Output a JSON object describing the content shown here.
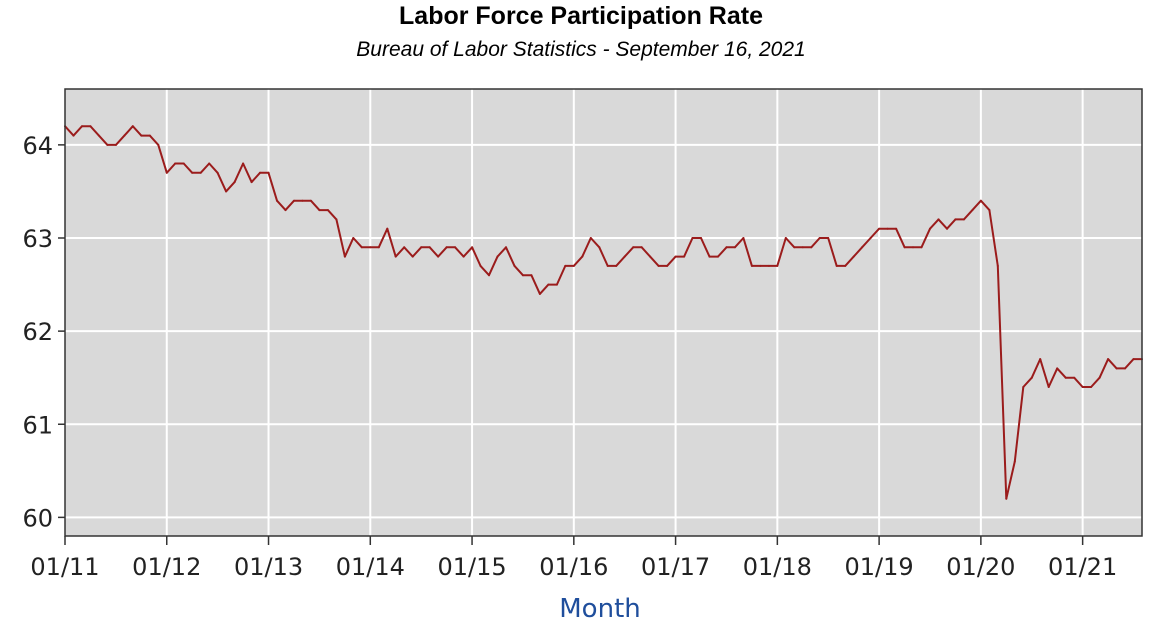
{
  "chart_data": {
    "type": "line",
    "title": "Labor Force Participation Rate",
    "subtitle": "Bureau of Labor Statistics - September 16, 2021",
    "xlabel": "Month",
    "ylabel": "",
    "grid": true,
    "ylim": [
      59.8,
      64.6
    ],
    "yticks": [
      "64",
      "63",
      "62",
      "61",
      "60"
    ],
    "xlim": [
      "2011-01",
      "2021-08"
    ],
    "xticks": [
      "01/11",
      "01/12",
      "01/13",
      "01/14",
      "01/15",
      "01/16",
      "01/17",
      "01/18",
      "01/19",
      "01/20",
      "01/21"
    ],
    "colors": {
      "line": "#9b1c1c",
      "plot_bg": "#d9d9d9",
      "grid": "#ffffff",
      "xlabel": "#1f4e9c"
    },
    "series": [
      {
        "name": "",
        "x": [
          "2011-01",
          "2011-02",
          "2011-03",
          "2011-04",
          "2011-05",
          "2011-06",
          "2011-07",
          "2011-08",
          "2011-09",
          "2011-10",
          "2011-11",
          "2011-12",
          "2012-01",
          "2012-02",
          "2012-03",
          "2012-04",
          "2012-05",
          "2012-06",
          "2012-07",
          "2012-08",
          "2012-09",
          "2012-10",
          "2012-11",
          "2012-12",
          "2013-01",
          "2013-02",
          "2013-03",
          "2013-04",
          "2013-05",
          "2013-06",
          "2013-07",
          "2013-08",
          "2013-09",
          "2013-10",
          "2013-11",
          "2013-12",
          "2014-01",
          "2014-02",
          "2014-03",
          "2014-04",
          "2014-05",
          "2014-06",
          "2014-07",
          "2014-08",
          "2014-09",
          "2014-10",
          "2014-11",
          "2014-12",
          "2015-01",
          "2015-02",
          "2015-03",
          "2015-04",
          "2015-05",
          "2015-06",
          "2015-07",
          "2015-08",
          "2015-09",
          "2015-10",
          "2015-11",
          "2015-12",
          "2016-01",
          "2016-02",
          "2016-03",
          "2016-04",
          "2016-05",
          "2016-06",
          "2016-07",
          "2016-08",
          "2016-09",
          "2016-10",
          "2016-11",
          "2016-12",
          "2017-01",
          "2017-02",
          "2017-03",
          "2017-04",
          "2017-05",
          "2017-06",
          "2017-07",
          "2017-08",
          "2017-09",
          "2017-10",
          "2017-11",
          "2017-12",
          "2018-01",
          "2018-02",
          "2018-03",
          "2018-04",
          "2018-05",
          "2018-06",
          "2018-07",
          "2018-08",
          "2018-09",
          "2018-10",
          "2018-11",
          "2018-12",
          "2019-01",
          "2019-02",
          "2019-03",
          "2019-04",
          "2019-05",
          "2019-06",
          "2019-07",
          "2019-08",
          "2019-09",
          "2019-10",
          "2019-11",
          "2019-12",
          "2020-01",
          "2020-02",
          "2020-03",
          "2020-04",
          "2020-05",
          "2020-06",
          "2020-07",
          "2020-08",
          "2020-09",
          "2020-10",
          "2020-11",
          "2020-12",
          "2021-01",
          "2021-02",
          "2021-03",
          "2021-04",
          "2021-05",
          "2021-06",
          "2021-07",
          "2021-08"
        ],
        "values": [
          64.2,
          64.1,
          64.2,
          64.2,
          64.1,
          64.0,
          64.0,
          64.1,
          64.2,
          64.1,
          64.1,
          64.0,
          63.7,
          63.8,
          63.8,
          63.7,
          63.7,
          63.8,
          63.7,
          63.5,
          63.6,
          63.8,
          63.6,
          63.7,
          63.7,
          63.4,
          63.3,
          63.4,
          63.4,
          63.4,
          63.3,
          63.3,
          63.2,
          62.8,
          63.0,
          62.9,
          62.9,
          62.9,
          63.1,
          62.8,
          62.9,
          62.8,
          62.9,
          62.9,
          62.8,
          62.9,
          62.9,
          62.8,
          62.9,
          62.7,
          62.6,
          62.8,
          62.9,
          62.7,
          62.6,
          62.6,
          62.4,
          62.5,
          62.5,
          62.7,
          62.7,
          62.8,
          63.0,
          62.9,
          62.7,
          62.7,
          62.8,
          62.9,
          62.9,
          62.8,
          62.7,
          62.7,
          62.8,
          62.8,
          63.0,
          63.0,
          62.8,
          62.8,
          62.9,
          62.9,
          63.0,
          62.7,
          62.7,
          62.7,
          62.7,
          63.0,
          62.9,
          62.9,
          62.9,
          63.0,
          63.0,
          62.7,
          62.7,
          62.8,
          62.9,
          63.0,
          63.1,
          63.1,
          63.1,
          62.9,
          62.9,
          62.9,
          63.1,
          63.2,
          63.1,
          63.2,
          63.2,
          63.3,
          63.4,
          63.3,
          62.7,
          60.2,
          60.6,
          61.4,
          61.5,
          61.7,
          61.4,
          61.6,
          61.5,
          61.5,
          61.4,
          61.4,
          61.5,
          61.7,
          61.6,
          61.6,
          61.7,
          61.7
        ]
      }
    ]
  }
}
